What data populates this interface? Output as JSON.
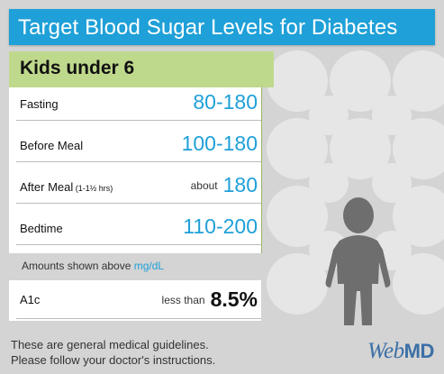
{
  "header": {
    "title": "Target Blood Sugar Levels for Diabetes"
  },
  "subheader": {
    "title": "Kids under 6"
  },
  "rows": [
    {
      "label": "Fasting",
      "label_sub": "",
      "prefix": "",
      "value": "80-180"
    },
    {
      "label": "Before Meal",
      "label_sub": "",
      "prefix": "",
      "value": "100-180"
    },
    {
      "label": "After Meal",
      "label_sub": " (1-1½ hrs)",
      "prefix": "about",
      "value": "180"
    },
    {
      "label": "Bedtime",
      "label_sub": "",
      "prefix": "",
      "value": "110-200"
    }
  ],
  "note": {
    "text": "Amounts shown above",
    "unit": "mg/dL"
  },
  "a1c": {
    "label": "A1c",
    "prefix": "less than",
    "value": "8.5%"
  },
  "footer": {
    "line1": "These are general medical guidelines.",
    "line2": "Please follow your doctor's instructions."
  },
  "logo": {
    "text_a": "Web",
    "text_b": "MD"
  },
  "colors": {
    "header": "#1fa0d8",
    "subheader": "#bfd98c",
    "value": "#1fa0d8",
    "background": "#d4d4d4"
  },
  "icons": {
    "figure": "child-silhouette-icon"
  }
}
